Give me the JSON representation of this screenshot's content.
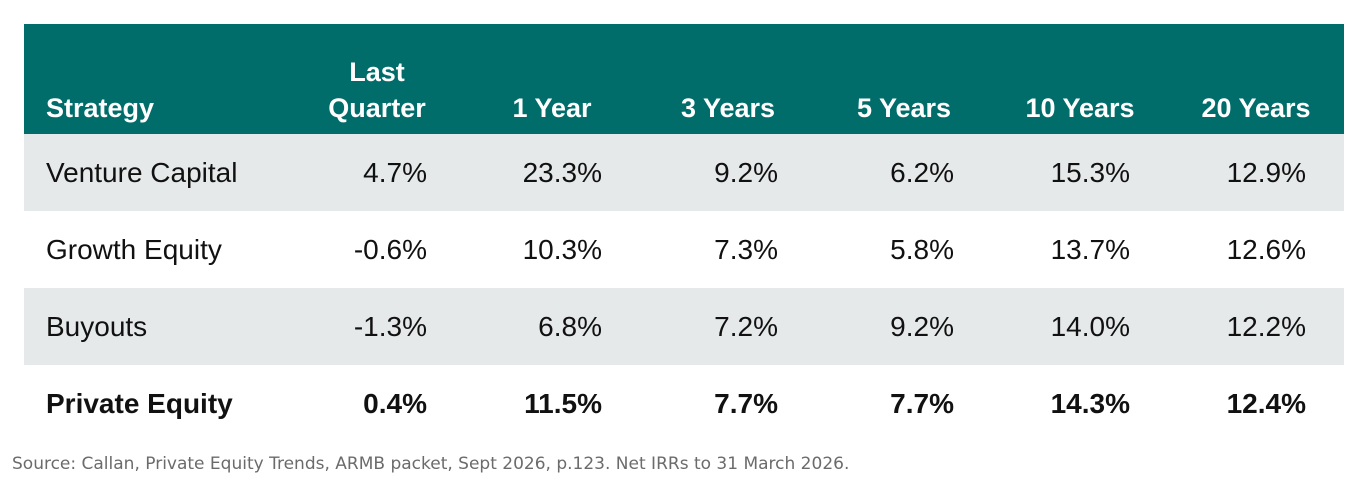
{
  "chart_data": {
    "type": "table",
    "columns": [
      "Strategy",
      "Last\nQuarter",
      "1 Year",
      "3 Years",
      "5 Years",
      "10 Years",
      "20 Years"
    ],
    "header": {
      "strategy": "Strategy",
      "last_quarter_line1": "Last",
      "last_quarter_line2": "Quarter",
      "one_year": "1 Year",
      "three_years": "3 Years",
      "five_years": "5 Years",
      "ten_years": "10 Years",
      "twenty_years": "20 Years"
    },
    "rows": [
      {
        "strategy": "Venture Capital",
        "values": [
          "4.7%",
          "23.3%",
          "9.2%",
          "6.2%",
          "15.3%",
          "12.9%"
        ]
      },
      {
        "strategy": "Growth Equity",
        "values": [
          "-0.6%",
          "10.3%",
          "7.3%",
          "5.8%",
          "13.7%",
          "12.6%"
        ]
      },
      {
        "strategy": "Buyouts",
        "values": [
          "-1.3%",
          "6.8%",
          "7.2%",
          "9.2%",
          "14.0%",
          "12.2%"
        ]
      },
      {
        "strategy": "Private Equity",
        "values": [
          "0.4%",
          "11.5%",
          "7.7%",
          "7.7%",
          "14.3%",
          "12.4%"
        ]
      }
    ],
    "numeric_rows": [
      {
        "strategy": "Venture Capital",
        "last_quarter": 4.7,
        "1y": 23.3,
        "3y": 9.2,
        "5y": 6.2,
        "10y": 15.3,
        "20y": 12.9
      },
      {
        "strategy": "Growth Equity",
        "last_quarter": -0.6,
        "1y": 10.3,
        "3y": 7.3,
        "5y": 5.8,
        "10y": 13.7,
        "20y": 12.6
      },
      {
        "strategy": "Buyouts",
        "last_quarter": -1.3,
        "1y": 6.8,
        "3y": 7.2,
        "5y": 9.2,
        "10y": 14.0,
        "20y": 12.2
      },
      {
        "strategy": "Private Equity",
        "last_quarter": 0.4,
        "1y": 11.5,
        "3y": 7.7,
        "5y": 7.7,
        "10y": 14.3,
        "20y": 12.4
      }
    ],
    "total_row": "Private Equity"
  },
  "source": "Source: Callan, Private Equity Trends, ARMB packet, Sept 2026, p.123. Net IRRs to 31 March 2026.",
  "colors": {
    "header_bg": "#006d6b",
    "header_text": "#ffffff",
    "shaded_row": "#e6e9ea",
    "source_text": "#6b6b6b"
  }
}
